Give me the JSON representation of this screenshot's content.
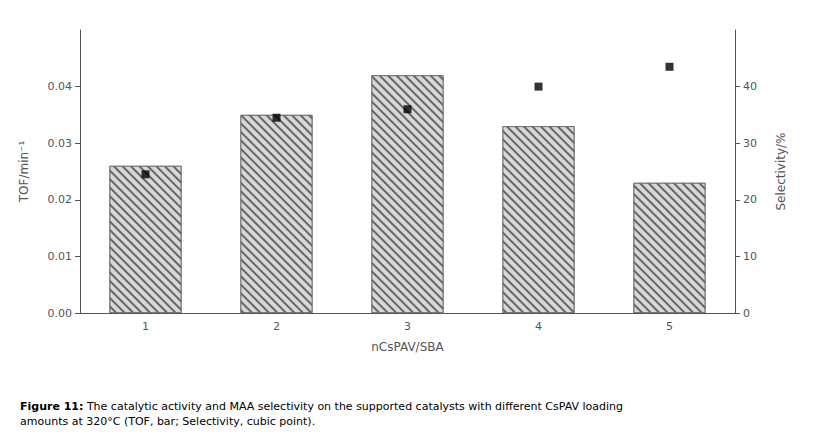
{
  "chart_data": {
    "type": "bar",
    "categories": [
      "1",
      "2",
      "3",
      "4",
      "5"
    ],
    "series": [
      {
        "type": "bar",
        "color": "#d8d8d8",
        "values": [
          0.026,
          0.035,
          0.042,
          0.033,
          0.023
        ]
      },
      {
        "type": "scatter",
        "axis": "y2",
        "marker": "square",
        "color": "#000000",
        "values": [
          24.5,
          34.5,
          36.0,
          40.0,
          43.5
        ]
      }
    ],
    "xlabel": "nCsPAV/SBA",
    "ylabel": "TOF/min⁻¹",
    "y2label": "Selectivity/%",
    "ylim": [
      0,
      0.05
    ],
    "yticks": [
      {
        "value": 0,
        "label": "0.00"
      },
      0.01,
      0.02,
      0.03,
      0.04
    ],
    "y2lim": [
      0,
      50
    ],
    "y2ticks": [
      0,
      10,
      20,
      30,
      40
    ],
    "grid": false,
    "caption": [
      "Figure 11:",
      " The catalytic activity and MAA selectivity on the supported catalysts with different CsPAV loading amounts at 320°C (TOF, bar; Selectivity, cubic point)."
    ]
  }
}
